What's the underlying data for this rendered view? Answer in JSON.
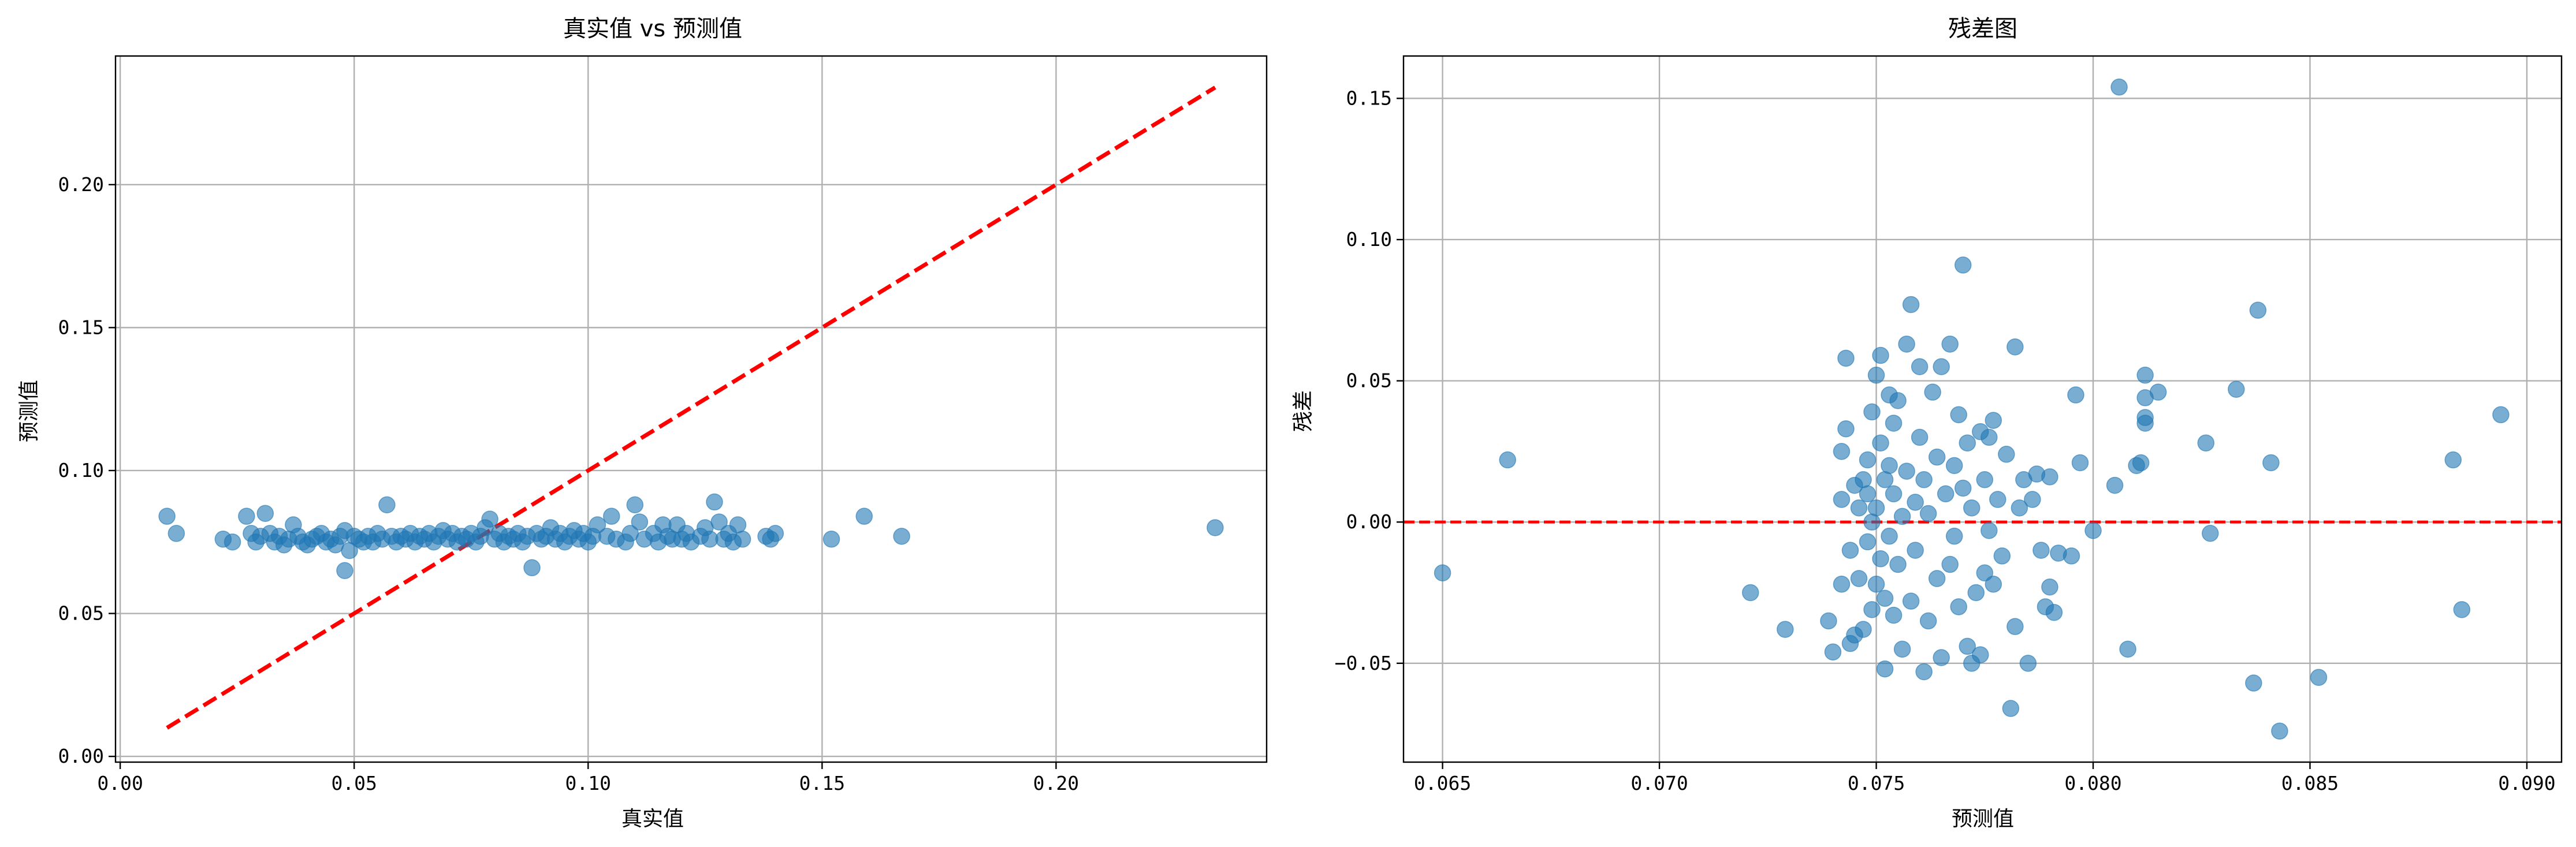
{
  "chart_data": [
    {
      "type": "scatter",
      "title": "真实值 vs 预测值",
      "xlabel": "真实值",
      "ylabel": "预测值",
      "xlim": [
        -0.001,
        0.245
      ],
      "ylim": [
        -0.002,
        0.245
      ],
      "xticks": [
        0.0,
        0.05,
        0.1,
        0.15,
        0.2
      ],
      "xtick_labels": [
        "0.00",
        "0.05",
        "0.10",
        "0.15",
        "0.20"
      ],
      "yticks": [
        0.0,
        0.05,
        0.1,
        0.15,
        0.2
      ],
      "ytick_labels": [
        "0.00",
        "0.05",
        "0.10",
        "0.15",
        "0.20"
      ],
      "grid": true,
      "point_color": "#1f77b4",
      "reference_line": {
        "x": [
          0.01,
          0.234
        ],
        "y": [
          0.01,
          0.234
        ],
        "style": "dashed",
        "color": "#ff0000"
      },
      "points": [
        [
          0.01,
          0.084
        ],
        [
          0.012,
          0.078
        ],
        [
          0.022,
          0.076
        ],
        [
          0.024,
          0.075
        ],
        [
          0.027,
          0.084
        ],
        [
          0.028,
          0.078
        ],
        [
          0.029,
          0.075
        ],
        [
          0.03,
          0.077
        ],
        [
          0.031,
          0.085
        ],
        [
          0.032,
          0.078
        ],
        [
          0.033,
          0.075
        ],
        [
          0.034,
          0.077
        ],
        [
          0.035,
          0.074
        ],
        [
          0.036,
          0.076
        ],
        [
          0.037,
          0.081
        ],
        [
          0.038,
          0.077
        ],
        [
          0.039,
          0.075
        ],
        [
          0.04,
          0.074
        ],
        [
          0.041,
          0.076
        ],
        [
          0.042,
          0.077
        ],
        [
          0.043,
          0.078
        ],
        [
          0.044,
          0.075
        ],
        [
          0.045,
          0.076
        ],
        [
          0.046,
          0.074
        ],
        [
          0.047,
          0.077
        ],
        [
          0.048,
          0.065
        ],
        [
          0.048,
          0.079
        ],
        [
          0.049,
          0.072
        ],
        [
          0.05,
          0.077
        ],
        [
          0.051,
          0.076
        ],
        [
          0.052,
          0.075
        ],
        [
          0.053,
          0.077
        ],
        [
          0.054,
          0.075
        ],
        [
          0.055,
          0.078
        ],
        [
          0.056,
          0.076
        ],
        [
          0.057,
          0.088
        ],
        [
          0.058,
          0.077
        ],
        [
          0.059,
          0.075
        ],
        [
          0.06,
          0.077
        ],
        [
          0.061,
          0.076
        ],
        [
          0.062,
          0.078
        ],
        [
          0.063,
          0.075
        ],
        [
          0.064,
          0.077
        ],
        [
          0.065,
          0.076
        ],
        [
          0.066,
          0.078
        ],
        [
          0.067,
          0.075
        ],
        [
          0.068,
          0.077
        ],
        [
          0.069,
          0.079
        ],
        [
          0.07,
          0.076
        ],
        [
          0.071,
          0.078
        ],
        [
          0.072,
          0.075
        ],
        [
          0.073,
          0.077
        ],
        [
          0.074,
          0.076
        ],
        [
          0.075,
          0.078
        ],
        [
          0.076,
          0.075
        ],
        [
          0.077,
          0.077
        ],
        [
          0.078,
          0.08
        ],
        [
          0.079,
          0.083
        ],
        [
          0.08,
          0.076
        ],
        [
          0.081,
          0.078
        ],
        [
          0.082,
          0.075
        ],
        [
          0.083,
          0.077
        ],
        [
          0.084,
          0.076
        ],
        [
          0.085,
          0.078
        ],
        [
          0.086,
          0.075
        ],
        [
          0.087,
          0.077
        ],
        [
          0.088,
          0.066
        ],
        [
          0.089,
          0.078
        ],
        [
          0.09,
          0.076
        ],
        [
          0.091,
          0.077
        ],
        [
          0.092,
          0.08
        ],
        [
          0.093,
          0.076
        ],
        [
          0.094,
          0.078
        ],
        [
          0.095,
          0.075
        ],
        [
          0.096,
          0.077
        ],
        [
          0.097,
          0.079
        ],
        [
          0.098,
          0.076
        ],
        [
          0.099,
          0.078
        ],
        [
          0.1,
          0.075
        ],
        [
          0.101,
          0.077
        ],
        [
          0.102,
          0.081
        ],
        [
          0.104,
          0.077
        ],
        [
          0.105,
          0.084
        ],
        [
          0.106,
          0.076
        ],
        [
          0.108,
          0.075
        ],
        [
          0.109,
          0.078
        ],
        [
          0.11,
          0.088
        ],
        [
          0.111,
          0.082
        ],
        [
          0.112,
          0.076
        ],
        [
          0.114,
          0.078
        ],
        [
          0.115,
          0.075
        ],
        [
          0.116,
          0.081
        ],
        [
          0.117,
          0.077
        ],
        [
          0.118,
          0.076
        ],
        [
          0.119,
          0.081
        ],
        [
          0.12,
          0.076
        ],
        [
          0.121,
          0.078
        ],
        [
          0.122,
          0.075
        ],
        [
          0.124,
          0.077
        ],
        [
          0.125,
          0.08
        ],
        [
          0.126,
          0.076
        ],
        [
          0.127,
          0.089
        ],
        [
          0.128,
          0.082
        ],
        [
          0.129,
          0.076
        ],
        [
          0.13,
          0.078
        ],
        [
          0.131,
          0.075
        ],
        [
          0.132,
          0.081
        ],
        [
          0.133,
          0.076
        ],
        [
          0.138,
          0.077
        ],
        [
          0.139,
          0.076
        ],
        [
          0.14,
          0.078
        ],
        [
          0.152,
          0.076
        ],
        [
          0.159,
          0.084
        ],
        [
          0.167,
          0.077
        ],
        [
          0.234,
          0.08
        ]
      ]
    },
    {
      "type": "scatter",
      "title": "残差图",
      "xlabel": "预测值",
      "ylabel": "残差",
      "xlim": [
        0.0641,
        0.0908
      ],
      "ylim": [
        -0.085,
        0.165
      ],
      "xticks": [
        0.065,
        0.07,
        0.075,
        0.08,
        0.085,
        0.09
      ],
      "xtick_labels": [
        "0.065",
        "0.070",
        "0.075",
        "0.080",
        "0.085",
        "0.090"
      ],
      "yticks": [
        -0.05,
        0.0,
        0.05,
        0.1,
        0.15
      ],
      "ytick_labels": [
        "−0.05",
        "0.00",
        "0.05",
        "0.10",
        "0.15"
      ],
      "grid": true,
      "point_color": "#1f77b4",
      "reference_line": {
        "y": 0.0,
        "style": "dashed",
        "color": "#ff0000"
      },
      "points": [
        [
          0.065,
          -0.018
        ],
        [
          0.0665,
          0.022
        ],
        [
          0.0721,
          -0.025
        ],
        [
          0.0729,
          -0.038
        ],
        [
          0.0739,
          -0.035
        ],
        [
          0.074,
          -0.046
        ],
        [
          0.0742,
          0.025
        ],
        [
          0.0742,
          -0.022
        ],
        [
          0.0742,
          0.008
        ],
        [
          0.0743,
          0.058
        ],
        [
          0.0743,
          0.033
        ],
        [
          0.0744,
          -0.043
        ],
        [
          0.0744,
          -0.01
        ],
        [
          0.0745,
          0.013
        ],
        [
          0.0745,
          -0.04
        ],
        [
          0.0746,
          -0.02
        ],
        [
          0.0746,
          0.005
        ],
        [
          0.0747,
          0.015
        ],
        [
          0.0747,
          -0.038
        ],
        [
          0.0748,
          0.01
        ],
        [
          0.0748,
          -0.007
        ],
        [
          0.0748,
          0.022
        ],
        [
          0.0749,
          -0.031
        ],
        [
          0.0749,
          0.0
        ],
        [
          0.0749,
          0.039
        ],
        [
          0.075,
          -0.022
        ],
        [
          0.075,
          0.052
        ],
        [
          0.075,
          0.005
        ],
        [
          0.0751,
          -0.013
        ],
        [
          0.0751,
          0.028
        ],
        [
          0.0751,
          0.059
        ],
        [
          0.0752,
          -0.052
        ],
        [
          0.0752,
          0.015
        ],
        [
          0.0752,
          -0.027
        ],
        [
          0.0753,
          0.045
        ],
        [
          0.0753,
          -0.005
        ],
        [
          0.0753,
          0.02
        ],
        [
          0.0754,
          -0.033
        ],
        [
          0.0754,
          0.01
        ],
        [
          0.0754,
          0.035
        ],
        [
          0.0755,
          -0.015
        ],
        [
          0.0755,
          0.043
        ],
        [
          0.0756,
          0.002
        ],
        [
          0.0756,
          -0.045
        ],
        [
          0.0757,
          0.063
        ],
        [
          0.0757,
          0.018
        ],
        [
          0.0758,
          0.077
        ],
        [
          0.0758,
          -0.028
        ],
        [
          0.0759,
          0.007
        ],
        [
          0.0759,
          -0.01
        ],
        [
          0.076,
          0.055
        ],
        [
          0.076,
          0.03
        ],
        [
          0.0761,
          -0.053
        ],
        [
          0.0761,
          0.015
        ],
        [
          0.0762,
          -0.035
        ],
        [
          0.0762,
          0.003
        ],
        [
          0.0763,
          0.046
        ],
        [
          0.0764,
          -0.02
        ],
        [
          0.0764,
          0.023
        ],
        [
          0.0765,
          0.055
        ],
        [
          0.0765,
          -0.048
        ],
        [
          0.0766,
          0.01
        ],
        [
          0.0767,
          0.063
        ],
        [
          0.0767,
          -0.015
        ],
        [
          0.0768,
          0.02
        ],
        [
          0.0768,
          -0.005
        ],
        [
          0.0769,
          0.038
        ],
        [
          0.0769,
          -0.03
        ],
        [
          0.077,
          0.091
        ],
        [
          0.077,
          0.012
        ],
        [
          0.0771,
          -0.044
        ],
        [
          0.0771,
          0.028
        ],
        [
          0.0772,
          -0.05
        ],
        [
          0.0772,
          0.005
        ],
        [
          0.0773,
          -0.025
        ],
        [
          0.0774,
          0.032
        ],
        [
          0.0774,
          -0.047
        ],
        [
          0.0775,
          0.015
        ],
        [
          0.0775,
          -0.018
        ],
        [
          0.0776,
          0.03
        ],
        [
          0.0776,
          -0.003
        ],
        [
          0.0777,
          0.036
        ],
        [
          0.0777,
          -0.022
        ],
        [
          0.0778,
          0.008
        ],
        [
          0.0779,
          -0.012
        ],
        [
          0.078,
          0.024
        ],
        [
          0.0781,
          -0.066
        ],
        [
          0.0782,
          0.062
        ],
        [
          0.0782,
          -0.037
        ],
        [
          0.0783,
          0.005
        ],
        [
          0.0784,
          0.015
        ],
        [
          0.0785,
          -0.05
        ],
        [
          0.0786,
          0.008
        ],
        [
          0.0787,
          0.017
        ],
        [
          0.0788,
          -0.01
        ],
        [
          0.0789,
          -0.03
        ],
        [
          0.079,
          -0.023
        ],
        [
          0.079,
          0.016
        ],
        [
          0.0791,
          -0.032
        ],
        [
          0.0792,
          -0.011
        ],
        [
          0.0795,
          -0.012
        ],
        [
          0.0796,
          0.045
        ],
        [
          0.0797,
          0.021
        ],
        [
          0.08,
          -0.003
        ],
        [
          0.0805,
          0.013
        ],
        [
          0.0806,
          0.154
        ],
        [
          0.0808,
          -0.045
        ],
        [
          0.081,
          0.02
        ],
        [
          0.0811,
          0.021
        ],
        [
          0.0812,
          0.052
        ],
        [
          0.0812,
          0.044
        ],
        [
          0.0812,
          0.037
        ],
        [
          0.0812,
          0.035
        ],
        [
          0.0815,
          0.046
        ],
        [
          0.0826,
          0.028
        ],
        [
          0.0827,
          -0.004
        ],
        [
          0.0833,
          0.047
        ],
        [
          0.0837,
          -0.057
        ],
        [
          0.0838,
          0.075
        ],
        [
          0.0841,
          0.021
        ],
        [
          0.0843,
          -0.074
        ],
        [
          0.0852,
          -0.055
        ],
        [
          0.0883,
          0.022
        ],
        [
          0.0885,
          -0.031
        ],
        [
          0.0894,
          0.038
        ]
      ]
    }
  ]
}
